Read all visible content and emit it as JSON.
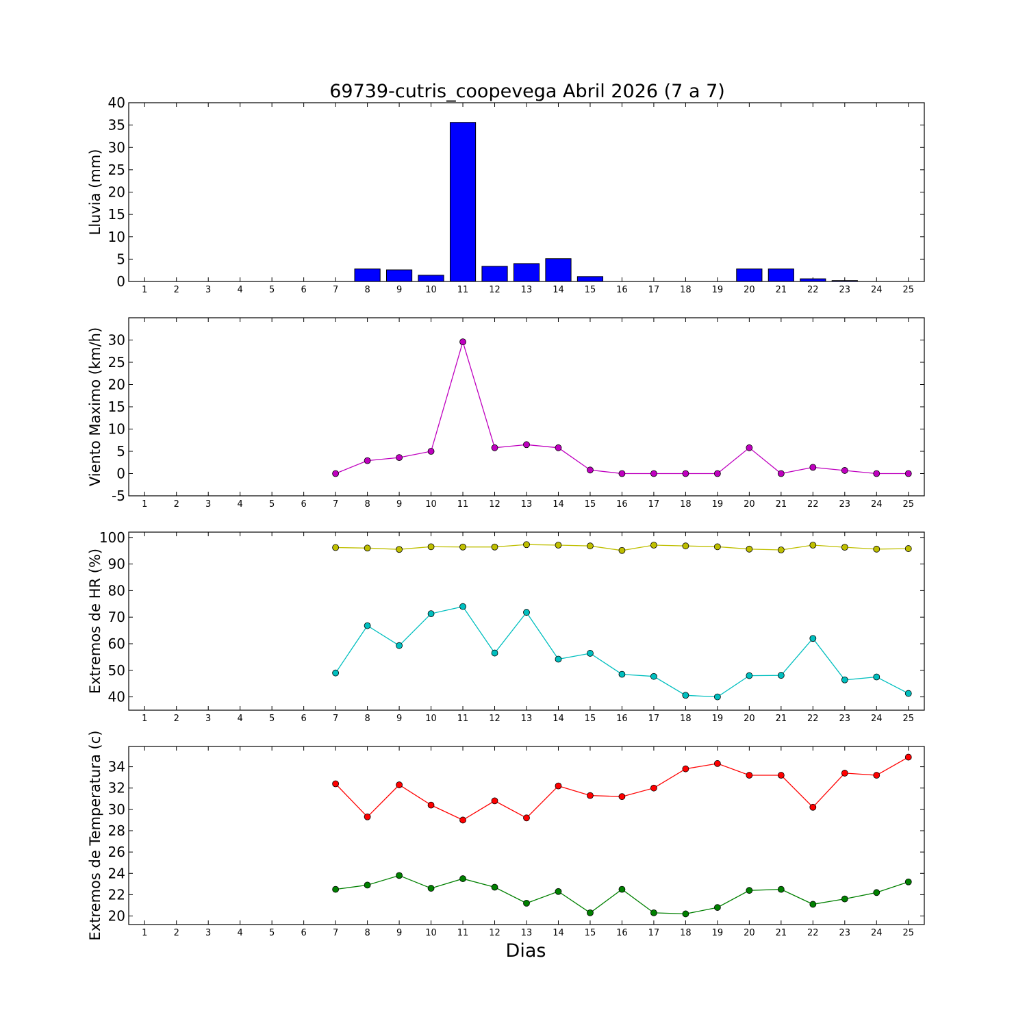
{
  "chart_data": [
    {
      "type": "bar",
      "title": "69739-cutris_coopevega Abril 2026  (7 a 7)",
      "xlabel": "",
      "ylabel": "Lluvia (mm)",
      "xlim": [
        0.5,
        25.5
      ],
      "ylim": [
        0,
        40
      ],
      "yticks": [
        0,
        5,
        10,
        15,
        20,
        25,
        30,
        35,
        40
      ],
      "categories": [
        1,
        2,
        3,
        4,
        5,
        6,
        7,
        8,
        9,
        10,
        11,
        12,
        13,
        14,
        15,
        16,
        17,
        18,
        19,
        20,
        21,
        22,
        23,
        24,
        25
      ],
      "series": [
        {
          "color": "#0000ff",
          "x": [
            7,
            8,
            9,
            10,
            11,
            12,
            13,
            14,
            15,
            16,
            17,
            18,
            19,
            20,
            21,
            22,
            23,
            24,
            25
          ],
          "values": [
            0,
            2.8,
            2.6,
            1.4,
            35.6,
            3.4,
            4.0,
            5.1,
            1.1,
            0,
            0,
            0,
            0,
            2.8,
            2.8,
            0.6,
            0.2,
            0,
            0
          ]
        }
      ],
      "grid": false
    },
    {
      "type": "line",
      "xlabel": "",
      "ylabel": "Viento Maximo (km/h)",
      "xlim": [
        0.5,
        25.5
      ],
      "ylim": [
        -5,
        35
      ],
      "yticks": [
        -5,
        0,
        5,
        10,
        15,
        20,
        25,
        30
      ],
      "categories": [
        1,
        2,
        3,
        4,
        5,
        6,
        7,
        8,
        9,
        10,
        11,
        12,
        13,
        14,
        15,
        16,
        17,
        18,
        19,
        20,
        21,
        22,
        23,
        24,
        25
      ],
      "series": [
        {
          "color": "#bf00bf",
          "x": [
            7,
            8,
            9,
            10,
            11,
            12,
            13,
            14,
            15,
            16,
            17,
            18,
            19,
            20,
            21,
            22,
            23,
            24,
            25
          ],
          "values": [
            0,
            2.9,
            3.6,
            5.0,
            29.6,
            5.8,
            6.5,
            5.8,
            0.8,
            0,
            0,
            0,
            0,
            5.8,
            0,
            1.4,
            0.7,
            0,
            0
          ]
        }
      ],
      "grid": false
    },
    {
      "type": "line",
      "xlabel": "",
      "ylabel": "Extremos de HR (%)",
      "xlim": [
        0.5,
        25.5
      ],
      "ylim": [
        35,
        102
      ],
      "yticks": [
        40,
        50,
        60,
        70,
        80,
        90,
        100
      ],
      "categories": [
        1,
        2,
        3,
        4,
        5,
        6,
        7,
        8,
        9,
        10,
        11,
        12,
        13,
        14,
        15,
        16,
        17,
        18,
        19,
        20,
        21,
        22,
        23,
        24,
        25
      ],
      "series": [
        {
          "color": "#bfbf00",
          "x": [
            7,
            8,
            9,
            10,
            11,
            12,
            13,
            14,
            15,
            16,
            17,
            18,
            19,
            20,
            21,
            22,
            23,
            24,
            25
          ],
          "values": [
            96.2,
            96.0,
            95.5,
            96.5,
            96.4,
            96.4,
            97.3,
            97.1,
            96.8,
            95.1,
            97.1,
            96.8,
            96.5,
            95.6,
            95.3,
            97.1,
            96.3,
            95.6,
            95.8
          ]
        },
        {
          "color": "#00bfbf",
          "x": [
            7,
            8,
            9,
            10,
            11,
            12,
            13,
            14,
            15,
            16,
            17,
            18,
            19,
            20,
            21,
            22,
            23,
            24,
            25
          ],
          "values": [
            49.0,
            66.8,
            59.3,
            71.3,
            74.0,
            56.5,
            71.8,
            54.2,
            56.4,
            48.5,
            47.7,
            40.6,
            40.0,
            48.0,
            48.1,
            62.0,
            46.4,
            47.5,
            41.3
          ]
        }
      ],
      "grid": false
    },
    {
      "type": "line",
      "xlabel": "Dias",
      "ylabel": "Extremos de Temperatura (c)",
      "xlim": [
        0.5,
        25.5
      ],
      "ylim": [
        19.2,
        35.9
      ],
      "yticks": [
        20,
        22,
        24,
        26,
        28,
        30,
        32,
        34
      ],
      "categories": [
        1,
        2,
        3,
        4,
        5,
        6,
        7,
        8,
        9,
        10,
        11,
        12,
        13,
        14,
        15,
        16,
        17,
        18,
        19,
        20,
        21,
        22,
        23,
        24,
        25
      ],
      "series": [
        {
          "color": "#ff0000",
          "x": [
            7,
            8,
            9,
            10,
            11,
            12,
            13,
            14,
            15,
            16,
            17,
            18,
            19,
            20,
            21,
            22,
            23,
            24,
            25
          ],
          "values": [
            32.4,
            29.3,
            32.3,
            30.4,
            29.0,
            30.8,
            29.2,
            32.2,
            31.3,
            31.2,
            32.0,
            33.8,
            34.3,
            33.2,
            33.2,
            30.2,
            33.4,
            33.2,
            34.9
          ]
        },
        {
          "color": "#008000",
          "x": [
            7,
            8,
            9,
            10,
            11,
            12,
            13,
            14,
            15,
            16,
            17,
            18,
            19,
            20,
            21,
            22,
            23,
            24,
            25
          ],
          "values": [
            22.5,
            22.9,
            23.8,
            22.6,
            23.5,
            22.7,
            21.2,
            22.3,
            20.3,
            22.5,
            20.3,
            20.2,
            20.8,
            22.4,
            22.5,
            21.1,
            21.6,
            22.2,
            23.2
          ]
        }
      ],
      "grid": false
    }
  ]
}
